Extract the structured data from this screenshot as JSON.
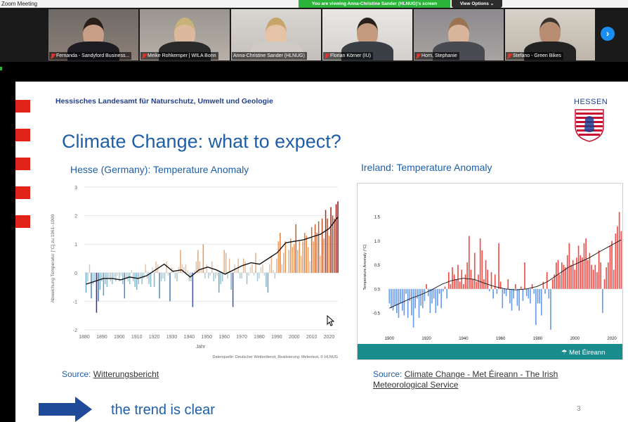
{
  "window": {
    "title": "Zoom Meeting"
  },
  "share_banner": {
    "message": "You are viewing Anna-Christine Sander (HLNUG)'s screen",
    "options_label": "View Options"
  },
  "participants": [
    {
      "name": "Fernanda - Sandyford Business...",
      "muted": true
    },
    {
      "name": "Meike Rohkemper | WILA Bonn",
      "muted": true
    },
    {
      "name": "Anna-Christine Sander (HLNUG)",
      "muted": false
    },
    {
      "name": "Florian Körner (IU)",
      "muted": true
    },
    {
      "name": "Horn, Stephanie",
      "muted": true
    },
    {
      "name": "Stefano - Green Bikes",
      "muted": true
    }
  ],
  "gallery_next_label": "›",
  "slide": {
    "agency": "Hessisches Landesamt für Naturschutz, Umwelt und Geologie",
    "logo_text": "HESSEN",
    "title": "Climate Change: what to expect?",
    "left_subtitle": "Hesse (Germany): Temperature Anomaly",
    "right_subtitle": "Ireland: Temperature Anomaly",
    "source_left_prefix": "Source: ",
    "source_left_link": "Witterungsbericht",
    "source_right_prefix": "Source: ",
    "source_right_link": "Climate Change - Met Éireann - The Irish Meteorological Service",
    "conclusion": "the trend is clear",
    "page_number": "3"
  },
  "colors": {
    "slide_blue": "#1f5fa6",
    "red_accent": "#e2231a",
    "met_teal": "#1a8c8c",
    "zoom_green": "#2ab43a"
  },
  "chart_data": [
    {
      "type": "bar",
      "title": "Hesse (Germany): Temperature Anomaly",
      "xlabel": "Jahr",
      "ylabel": "Abweichung Temperatur [°C] zu 1961–1990",
      "note": "Datenquelle: Deutscher Wetterdienst, Realisierung: Meteotest, © HLNUG",
      "xlim": [
        1880,
        2025
      ],
      "ylim": [
        -2,
        3
      ],
      "xticks": [
        1880,
        1890,
        1900,
        1910,
        1920,
        1930,
        1940,
        1950,
        1960,
        1970,
        1980,
        1990,
        2000,
        2010,
        2020
      ],
      "yticks": [
        -2,
        -1,
        0,
        1,
        2,
        3
      ],
      "grid": true,
      "legend": "none",
      "x_start": 1881,
      "values": [
        -0.7,
        -0.3,
        0.3,
        -0.9,
        -0.4,
        -0.3,
        -1.4,
        -1.0,
        -0.6,
        -0.3,
        -0.8,
        -0.4,
        -0.5,
        -0.2,
        -0.3,
        -0.4,
        -0.2,
        -0.3,
        -0.1,
        -0.3,
        -0.1,
        -0.4,
        -0.9,
        -0.2,
        -0.3,
        -0.4,
        0.1,
        -0.3,
        -0.5,
        -0.6,
        -0.4,
        -0.2,
        -0.4,
        -0.2,
        0.3,
        -0.2,
        -0.4,
        -0.5,
        0.2,
        -0.5,
        0.4,
        0.3,
        -0.9,
        -0.3,
        -0.2,
        -0.3,
        0.4,
        -0.1,
        -1.0,
        0.2,
        0.1,
        -0.2,
        -0.3,
        0.2,
        0.8,
        0.3,
        0.2,
        0.3,
        0.1,
        -0.3,
        -0.3,
        -1.2,
        0.1,
        0.4,
        0.8,
        0.4,
        0.1,
        1.0,
        -0.2,
        0.3,
        -0.2,
        -0.1,
        0.4,
        -0.3,
        -0.2,
        -0.1,
        -0.7,
        -0.4,
        -0.3,
        0.8,
        0.7,
        -0.2,
        0.5,
        -0.6,
        -1.2,
        0.3,
        0.1,
        0.5,
        -0.2,
        -0.2,
        0.5,
        0.4,
        -0.4,
        -0.1,
        0.2,
        0.3,
        -0.1,
        0.7,
        -0.3,
        -0.2,
        0.2,
        0.3,
        -0.1,
        -0.5,
        -0.7,
        0.3,
        0.6,
        0.1,
        -0.2,
        0.5,
        1.1,
        1.4,
        0.3,
        0.7,
        1.1,
        0.0,
        0.8,
        1.2,
        0.9,
        1.0,
        1.7,
        0.8,
        1.1,
        0.6,
        1.1,
        1.4,
        1.3,
        0.9,
        0.4,
        1.6,
        1.1,
        1.7,
        1.4,
        1.8,
        0.6,
        1.9,
        1.2,
        2.2,
        1.9,
        1.3,
        2.3,
        2.0,
        1.9,
        2.4,
        2.5
      ],
      "trend_label": "smoothed trend",
      "trend": [
        -0.4,
        -0.3,
        -0.2,
        -0.2,
        -0.25,
        -0.15,
        -0.2,
        -0.1,
        0.1,
        0.3,
        0.05,
        0.1,
        -0.15,
        0.1,
        0.2,
        0.1,
        -0.05,
        0.1,
        0.25,
        0.35,
        0.3,
        0.5,
        0.7,
        1.05,
        1.1,
        1.15,
        1.25,
        1.35,
        1.55,
        1.95
      ]
    },
    {
      "type": "bar",
      "title": "Ireland: Temperature Anomaly",
      "xlabel": "",
      "ylabel": "Temperature Anomaly (°C)",
      "xlim": [
        1898,
        2023
      ],
      "ylim": [
        -0.85,
        1.75
      ],
      "xticks": [
        1900,
        1920,
        1940,
        1960,
        1980,
        2000,
        2020
      ],
      "yticks": [
        -0.5,
        0.0,
        0.5,
        1.0,
        1.5
      ],
      "grid": false,
      "legend": "none",
      "x_start": 1900,
      "values": [
        -0.3,
        -0.4,
        -0.45,
        -0.35,
        -0.5,
        -0.6,
        -0.3,
        -0.45,
        -0.55,
        -0.1,
        -0.6,
        -0.25,
        -0.55,
        -0.8,
        -0.4,
        -0.2,
        -0.6,
        -0.35,
        -0.4,
        -0.25,
        0.1,
        -0.15,
        -0.5,
        -0.3,
        -0.2,
        -0.5,
        -0.35,
        -0.1,
        -0.4,
        -0.05,
        0.05,
        -0.2,
        0.35,
        0.1,
        0.45,
        0.3,
        0.2,
        0.5,
        0.15,
        0.4,
        0.1,
        0.3,
        0.55,
        1.1,
        0.4,
        0.2,
        0.75,
        0.15,
        0.3,
        1.05,
        0.8,
        0.2,
        0.6,
        0.4,
        -0.05,
        0.35,
        -0.2,
        0.3,
        -0.1,
        0.95,
        0.15,
        -0.4,
        -0.1,
        -0.15,
        0.2,
        -0.3,
        -0.45,
        -0.2,
        0.1,
        -0.35,
        -0.45,
        0.05,
        -0.25,
        0.55,
        -0.15,
        -0.2,
        -0.3,
        0.1,
        -0.1,
        -0.75,
        -0.3,
        -0.3,
        -0.55,
        0.15,
        -0.1,
        0.35,
        -0.2,
        -0.85,
        0.2,
        0.3,
        0.55,
        0.6,
        0.3,
        0.55,
        0.5,
        0.45,
        0.7,
        0.95,
        0.5,
        0.6,
        0.4,
        0.65,
        0.9,
        0.7,
        0.65,
        0.95,
        1.05,
        0.6,
        0.75,
        0.5,
        0.4,
        0.5,
        0.35,
        0.8,
        0.55,
        -0.5,
        0.2,
        0.45,
        0.55,
        0.9,
        1.0,
        0.4,
        1.15,
        1.3,
        1.6,
        1.2
      ],
      "trend": [
        -0.4,
        -0.3,
        -0.2,
        -0.12,
        -0.02,
        0.1,
        0.18,
        0.22,
        0.2,
        0.12,
        0.05,
        0.0,
        -0.02,
        0.0,
        0.05,
        0.15,
        0.3,
        0.45,
        0.55,
        0.65,
        0.78,
        0.9,
        1.02
      ]
    }
  ]
}
